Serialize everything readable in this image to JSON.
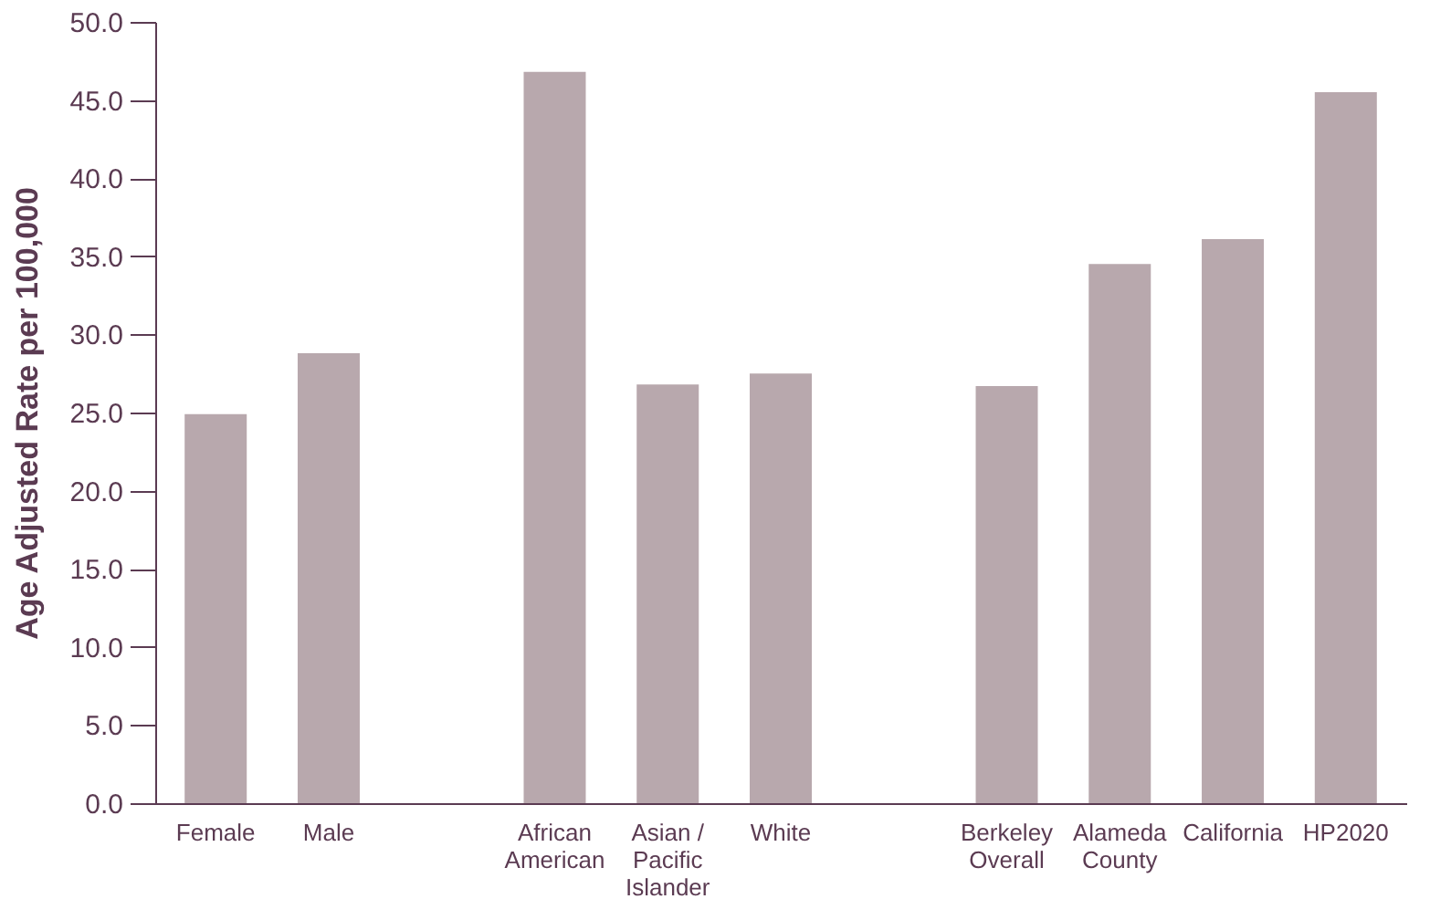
{
  "chart_data": {
    "type": "bar",
    "ylabel": "Age Adjusted Rate per 100,000",
    "categories": [
      "Female",
      "Male",
      null,
      "African American",
      "Asian / Pacific Islander",
      "White",
      null,
      "Berkeley Overall",
      "Alameda County",
      "California",
      "HP2020"
    ],
    "values": [
      24.9,
      28.8,
      null,
      46.8,
      26.8,
      27.5,
      null,
      26.7,
      34.5,
      36.1,
      45.5
    ],
    "color": "#b8a8ad",
    "ylim": [
      0,
      50
    ],
    "yticks": [
      {
        "value": 0,
        "label": "0.0"
      },
      {
        "value": 5,
        "label": "5.0"
      },
      {
        "value": 10,
        "label": "10.0"
      },
      {
        "value": 15,
        "label": "15.0"
      },
      {
        "value": 20,
        "label": "20.0"
      },
      {
        "value": 25,
        "label": "25.0"
      },
      {
        "value": 30,
        "label": "30.0"
      },
      {
        "value": 35,
        "label": "35.0"
      },
      {
        "value": 40,
        "label": "40.0"
      },
      {
        "value": 45,
        "label": "45.0"
      },
      {
        "value": 50,
        "label": "50.0"
      }
    ],
    "grid": false
  }
}
